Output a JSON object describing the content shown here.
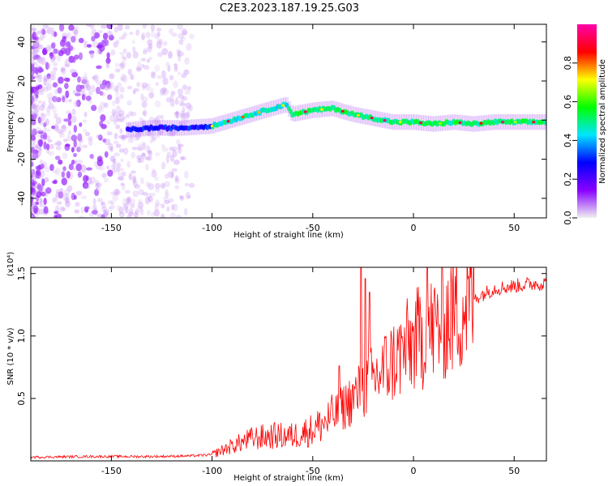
{
  "title": "C2E3.2023.187.19.25.G03",
  "chart_data": [
    {
      "type": "heatmap",
      "xlabel": "Height of straight line (km)",
      "ylabel": "Frequency (Hz)",
      "xlim": [
        -190,
        66
      ],
      "ylim": [
        -50,
        49
      ],
      "x_ticks": [
        -150,
        -100,
        -50,
        0,
        50
      ],
      "y_ticks": [
        -40,
        -20,
        0,
        20,
        40
      ],
      "colorbar": {
        "label": "Normalized spectral amplitude",
        "range": [
          0,
          1
        ],
        "ticks": [
          "0.0",
          "0.2",
          "0.4",
          "0.6",
          "0.8"
        ],
        "colormap": [
          "#f0f0f0",
          "#8800ff",
          "#0000ff",
          "#00e5ff",
          "#00ff00",
          "#ffff00",
          "#ff0000",
          "#ff00aa"
        ]
      },
      "ridge": [
        {
          "x": -142,
          "y": -5
        },
        {
          "x": -130,
          "y": -4
        },
        {
          "x": -115,
          "y": -4
        },
        {
          "x": -100,
          "y": -3
        },
        {
          "x": -90,
          "y": 0
        },
        {
          "x": -80,
          "y": 3
        },
        {
          "x": -70,
          "y": 6
        },
        {
          "x": -63,
          "y": 8
        },
        {
          "x": -60,
          "y": 3
        },
        {
          "x": -50,
          "y": 5
        },
        {
          "x": -40,
          "y": 6
        },
        {
          "x": -30,
          "y": 3
        },
        {
          "x": -20,
          "y": 1
        },
        {
          "x": -10,
          "y": -1
        },
        {
          "x": 0,
          "y": -1
        },
        {
          "x": 10,
          "y": -2
        },
        {
          "x": 20,
          "y": -1
        },
        {
          "x": 30,
          "y": -2
        },
        {
          "x": 40,
          "y": -1
        },
        {
          "x": 50,
          "y": -1
        },
        {
          "x": 66,
          "y": -1
        }
      ]
    },
    {
      "type": "line",
      "xlabel": "Height of straight line (km)",
      "ylabel": "SNR (10 * v/v)",
      "y_multiplier": "(x10⁴)",
      "xlim": [
        -190,
        66
      ],
      "ylim": [
        0,
        1.55
      ],
      "x_ticks": [
        -150,
        -100,
        -50,
        0,
        50
      ],
      "y_ticks": [
        "0.5",
        "1.0",
        "1.5"
      ],
      "series": [
        {
          "color": "#ff0000",
          "points": [
            [
              -190,
              0.03
            ],
            [
              -160,
              0.035
            ],
            [
              -130,
              0.035
            ],
            [
              -110,
              0.04
            ],
            [
              -100,
              0.05
            ],
            [
              -90,
              0.12
            ],
            [
              -80,
              0.18
            ],
            [
              -70,
              0.2
            ],
            [
              -60,
              0.2
            ],
            [
              -50,
              0.25
            ],
            [
              -40,
              0.35
            ],
            [
              -30,
              0.5
            ],
            [
              -20,
              0.65
            ],
            [
              -10,
              0.8
            ],
            [
              0,
              0.95
            ],
            [
              10,
              1.05
            ],
            [
              20,
              1.2
            ],
            [
              30,
              1.3
            ],
            [
              40,
              1.38
            ],
            [
              50,
              1.4
            ],
            [
              60,
              1.42
            ],
            [
              66,
              1.42
            ]
          ],
          "spikes": [
            [
              -26,
              1.55
            ],
            [
              -24,
              1.46
            ],
            [
              -22,
              1.35
            ],
            [
              7,
              1.55
            ],
            [
              -37,
              0.76
            ]
          ]
        }
      ]
    }
  ]
}
